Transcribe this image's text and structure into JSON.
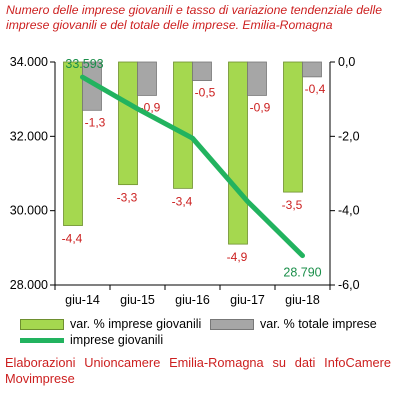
{
  "title": "Numero delle imprese giovanili e tasso di variazione tendenziale delle imprese giovanili e del totale delle imprese. Emilia-Romagna",
  "source_note": "Elaborazioni Unioncamere Emilia-Romagna su dati InfoCamere Movimprese",
  "colors": {
    "accent_text": "#cc1f1f",
    "bar_young": "#a5d84f",
    "bar_total": "#a6a6a6",
    "line_young": "#22b35f"
  },
  "chart_data": {
    "type": "bar",
    "categories": [
      "giu-14",
      "giu-15",
      "giu-16",
      "giu-17",
      "giu-18"
    ],
    "series": [
      {
        "name": "var. % imprese giovanili",
        "type": "bar",
        "axis": "right",
        "values": [
          -4.4,
          -3.3,
          -3.4,
          -4.9,
          -3.5
        ],
        "labels": [
          "-4,4",
          "-3,3",
          "-3,4",
          "-4,9",
          "-3,5"
        ]
      },
      {
        "name": "var. % totale imprese",
        "type": "bar",
        "axis": "right",
        "values": [
          -1.3,
          -0.9,
          -0.5,
          -0.9,
          -0.4
        ],
        "labels": [
          "-1,3",
          "-0,9",
          "-0,5",
          "-0,9",
          "-0,4"
        ]
      },
      {
        "name": "imprese giovanili",
        "type": "line",
        "axis": "left",
        "values": [
          33593,
          32740,
          31950,
          30250,
          28790
        ],
        "labels": [
          "33.593",
          "",
          "",
          "",
          "28.790"
        ]
      }
    ],
    "y_left": {
      "ylim": [
        28000,
        34000
      ],
      "ticks": [
        28000,
        30000,
        32000,
        34000
      ],
      "tick_labels": [
        "28.000",
        "30.000",
        "32.000",
        "34.000"
      ]
    },
    "y_right": {
      "ylim": [
        -6,
        0
      ],
      "ticks": [
        -6,
        -4,
        -2,
        0
      ],
      "tick_labels": [
        "-6,0",
        "-4,0",
        "-2,0",
        "0,0"
      ]
    },
    "grid": false,
    "legend_placement": "bottom"
  }
}
